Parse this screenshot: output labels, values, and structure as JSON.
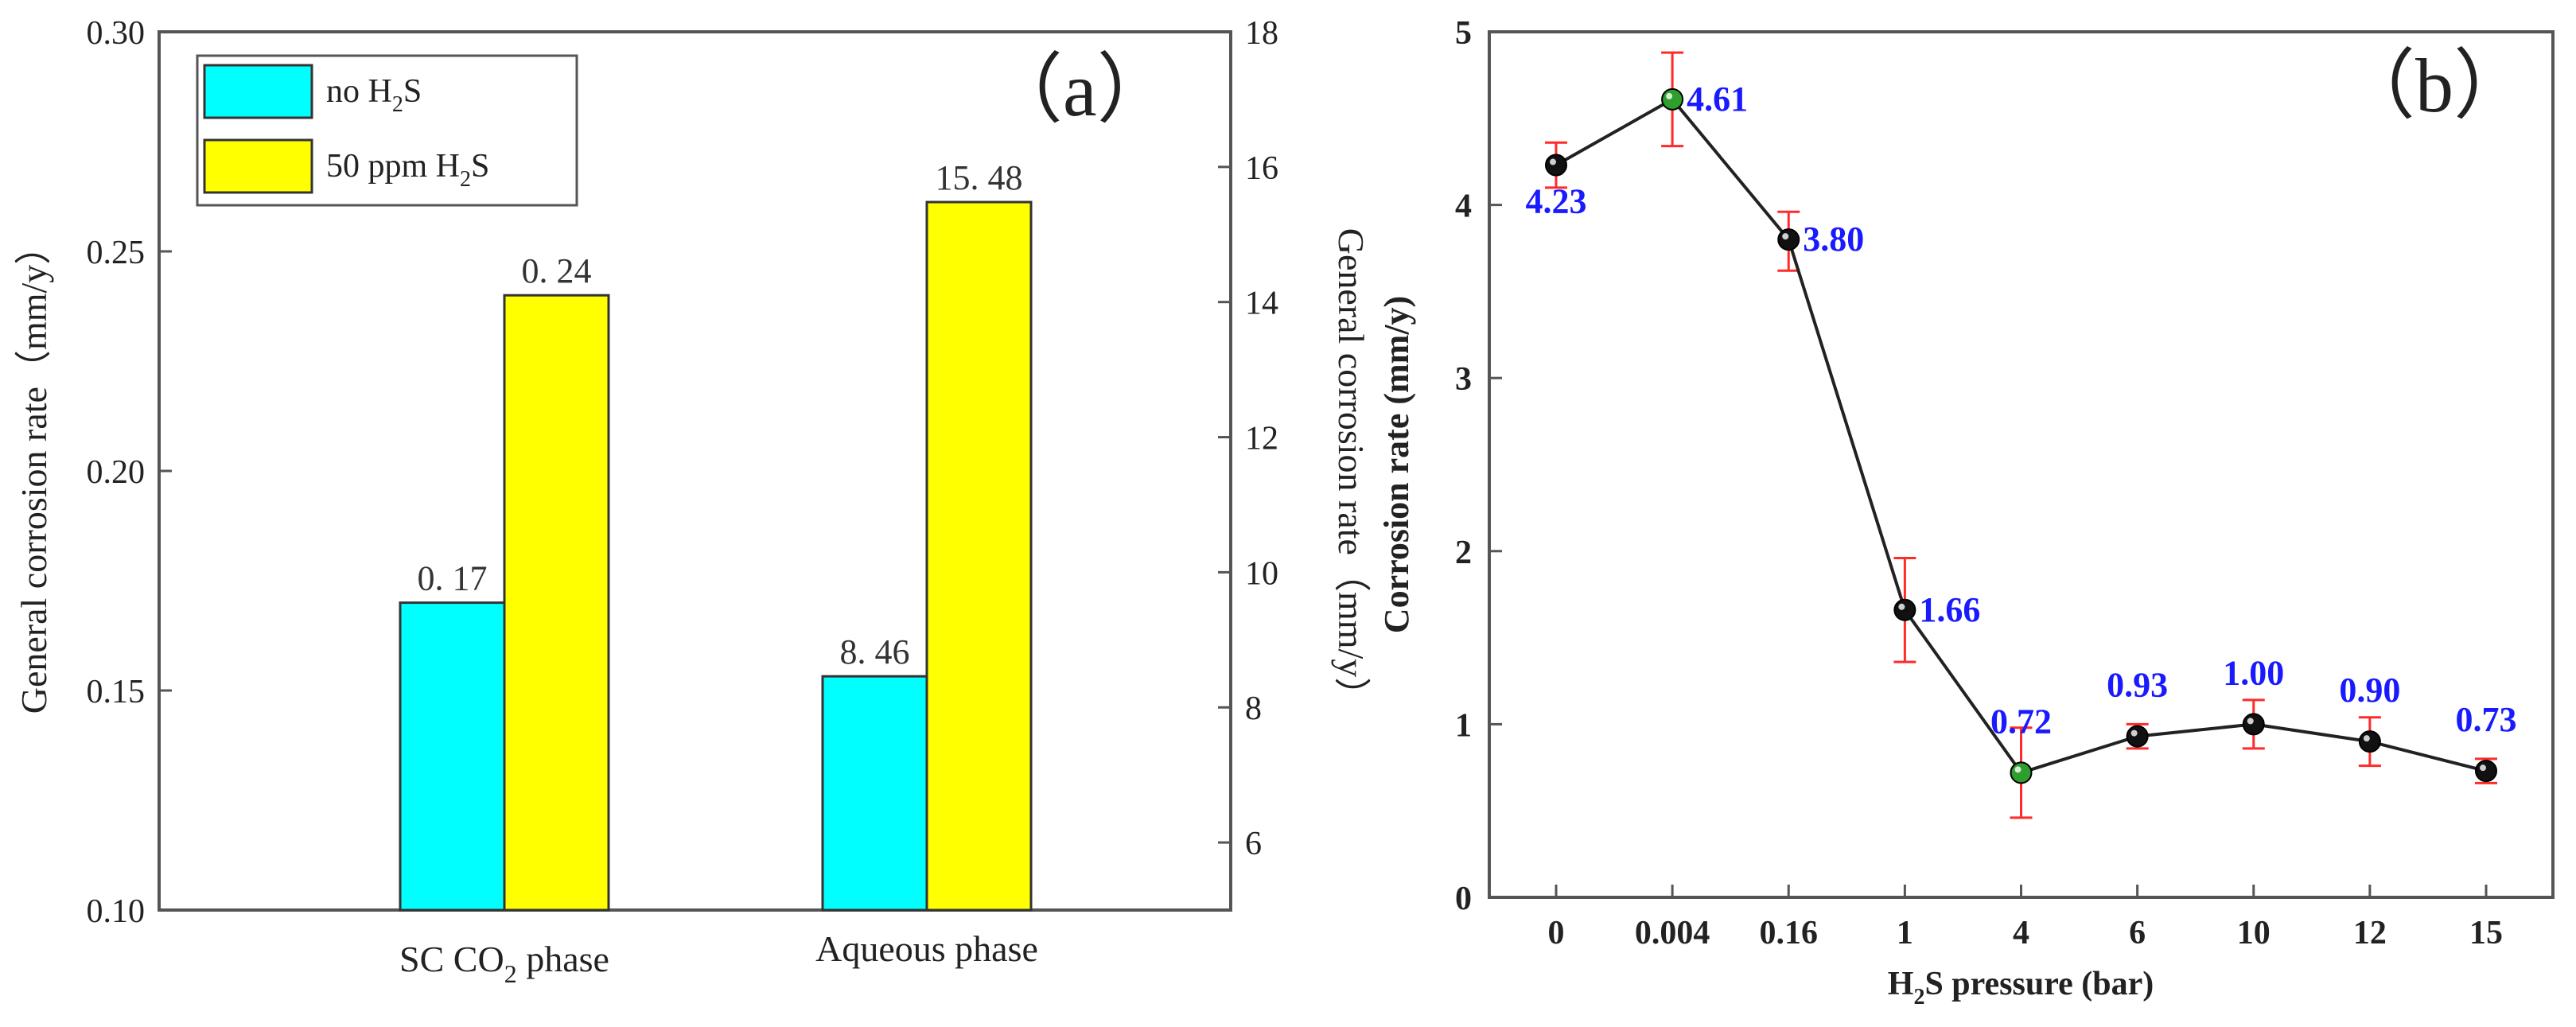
{
  "chart_data": [
    {
      "panel_label": "（a）",
      "type": "bar",
      "categories": [
        {
          "name": "SC CO",
          "sub": "2",
          "suffix": " phase",
          "axis": "left"
        },
        {
          "name": "Aqueous phase",
          "sub": "",
          "suffix": "",
          "axis": "right"
        }
      ],
      "series": [
        {
          "name": "no H2S",
          "legend_parts": [
            "no H",
            "2",
            "S"
          ],
          "color": "#00ffff",
          "values": [
            0.17,
            8.46
          ],
          "labels": [
            "0. 17",
            "8. 46"
          ]
        },
        {
          "name": "50 ppm H2S",
          "legend_parts": [
            "50 ppm H",
            "2",
            "S"
          ],
          "color": "#ffff00",
          "values": [
            0.24,
            15.48
          ],
          "labels": [
            "0. 24",
            "15. 48"
          ]
        }
      ],
      "left_axis": {
        "label": "General corrosion rate（mm/y）",
        "ylim": [
          0.1,
          0.3
        ],
        "ticks": [
          0.1,
          0.15,
          0.2,
          0.25,
          0.3
        ],
        "tick_labels": [
          "0.10",
          "0.15",
          "0.20",
          "0.25",
          "0.30"
        ]
      },
      "right_axis": {
        "label": "General corrosion rate（mm/y）",
        "ylim": [
          5,
          18
        ],
        "ticks": [
          6,
          8,
          10,
          12,
          14,
          16,
          18
        ],
        "tick_labels": [
          "6",
          "8",
          "10",
          "12",
          "14",
          "16",
          "18"
        ]
      },
      "legend_position": "top-left"
    },
    {
      "panel_label": "（b）",
      "type": "line",
      "x_categories": [
        "0",
        "0.004",
        "0.16",
        "1",
        "4",
        "6",
        "10",
        "12",
        "15"
      ],
      "values": [
        4.23,
        4.61,
        3.8,
        1.66,
        0.72,
        0.93,
        1.0,
        0.9,
        0.73
      ],
      "value_labels": [
        "4.23",
        "4.61",
        "3.80",
        "1.66",
        "0.72",
        "0.93",
        "1.00",
        "0.90",
        "0.73"
      ],
      "error_low": [
        4.1,
        4.34,
        3.62,
        1.36,
        0.46,
        0.86,
        0.86,
        0.76,
        0.66
      ],
      "error_high": [
        4.36,
        4.88,
        3.96,
        1.96,
        0.98,
        1.0,
        1.14,
        1.04,
        0.8
      ],
      "point_colors": [
        "#111111",
        "#2e9e2e",
        "#111111",
        "#111111",
        "#2e9e2e",
        "#111111",
        "#111111",
        "#111111",
        "#111111"
      ],
      "label_color": "#1a1aff",
      "error_color": "#ff2a2a",
      "xlabel_parts": [
        "H",
        "2",
        "S pressure (bar)"
      ],
      "ylabel": "Corrosion rate (mm/y)",
      "ylim": [
        0,
        5
      ],
      "ticks": [
        0,
        1,
        2,
        3,
        4,
        5
      ],
      "tick_labels": [
        "0",
        "1",
        "2",
        "3",
        "4",
        "5"
      ]
    }
  ]
}
